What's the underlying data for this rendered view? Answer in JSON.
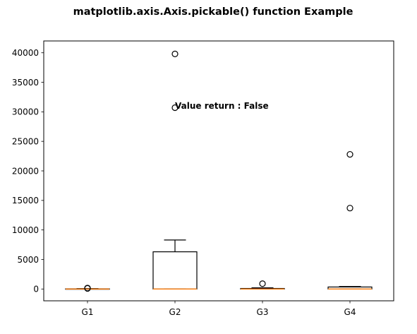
{
  "chart_data": {
    "type": "boxplot",
    "title": "matplotlib.axis.Axis.pickable() function Example",
    "xlabel": "",
    "ylabel": "",
    "categories": [
      "G1",
      "G2",
      "G3",
      "G4"
    ],
    "ylim": [
      -2000,
      42000
    ],
    "yticks": [
      0,
      5000,
      10000,
      15000,
      20000,
      25000,
      30000,
      35000,
      40000
    ],
    "ytick_labels": [
      "0",
      "5000",
      "10000",
      "15000",
      "20000",
      "25000",
      "30000",
      "35000",
      "40000"
    ],
    "grid": false,
    "legend": "none",
    "boxes": [
      {
        "label": "G1",
        "whislo": 0,
        "q1": 0,
        "med": 0,
        "q3": 30,
        "whishi": 60,
        "fliers": [
          100,
          160
        ]
      },
      {
        "label": "G2",
        "whislo": 0,
        "q1": 0,
        "med": 0,
        "q3": 6300,
        "whishi": 8300,
        "fliers": [
          30700,
          39800
        ]
      },
      {
        "label": "G3",
        "whislo": 0,
        "q1": 0,
        "med": 0,
        "q3": 90,
        "whishi": 200,
        "fliers": [
          900
        ]
      },
      {
        "label": "G4",
        "whislo": 0,
        "q1": 0,
        "med": 0,
        "q3": 340,
        "whishi": 420,
        "fliers": [
          13700,
          22800
        ]
      }
    ],
    "annotation": {
      "text": "Value return : False",
      "x": 2,
      "y": 30500
    },
    "colors": {
      "box": "#000000",
      "median": "#ff7f0e",
      "flier": "#000000",
      "background": "#ffffff"
    }
  }
}
